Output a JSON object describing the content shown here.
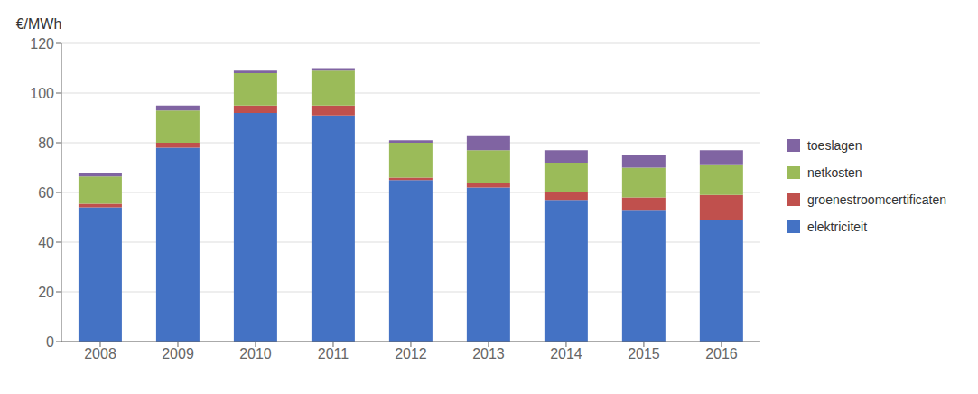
{
  "chart_data": {
    "type": "bar",
    "stacked": true,
    "y_label": "€/MWh",
    "categories": [
      "2008",
      "2009",
      "2010",
      "2011",
      "2012",
      "2013",
      "2014",
      "2015",
      "2016"
    ],
    "series": [
      {
        "name": "elektriciteit",
        "color": "#4472C4",
        "values": [
          54,
          78,
          92,
          91,
          65,
          62,
          57,
          53,
          49
        ]
      },
      {
        "name": "groenestroomcertificaten",
        "color": "#C0504D",
        "values": [
          1.5,
          2,
          3,
          4,
          1,
          2,
          3,
          5,
          10
        ]
      },
      {
        "name": "netkosten",
        "color": "#9BBB59",
        "values": [
          11,
          13,
          13,
          14,
          14,
          13,
          12,
          12,
          12
        ]
      },
      {
        "name": "toeslagen",
        "color": "#8064A2",
        "values": [
          1.5,
          2,
          1,
          1,
          1,
          6,
          5,
          5,
          6
        ]
      }
    ],
    "ylim": [
      0,
      120
    ],
    "yticks": [
      0,
      20,
      40,
      60,
      80,
      100,
      120
    ],
    "grid": true,
    "legend": "right"
  }
}
